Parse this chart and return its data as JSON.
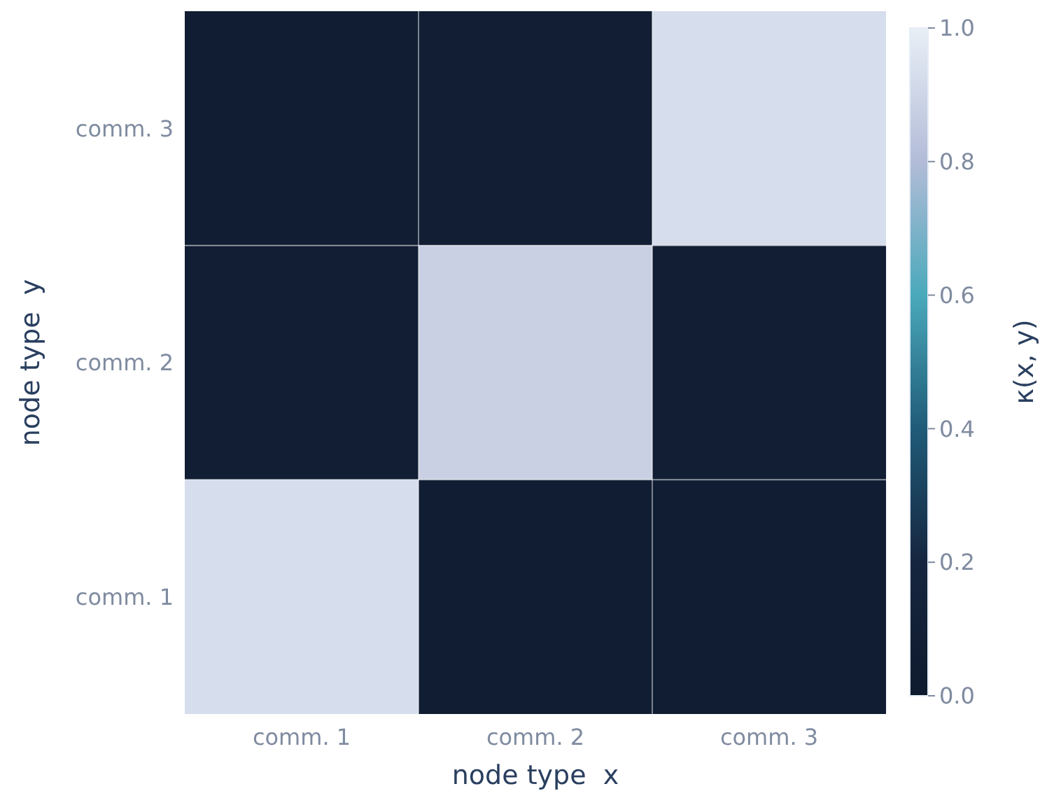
{
  "chart_data": {
    "type": "heatmap",
    "xlabel": "node type  x",
    "ylabel": "node type  y",
    "clabel": "κ(x, y)",
    "categories": [
      "comm. 1",
      "comm. 2",
      "comm. 3"
    ],
    "y_categories": [
      "comm. 3",
      "comm. 2",
      "comm. 1"
    ],
    "cells": [
      [
        0.05,
        0.08,
        0.93
      ],
      [
        0.08,
        0.88,
        0.07
      ],
      [
        0.93,
        0.06,
        0.05
      ]
    ],
    "clim": [
      0,
      1
    ],
    "cticks": [
      {
        "value": 0,
        "label": "0.0"
      },
      {
        "value": 0.2,
        "label": "0.2"
      },
      {
        "value": 0.4,
        "label": "0.4"
      },
      {
        "value": 0.6,
        "label": "0.6"
      },
      {
        "value": 0.8,
        "label": "0.8"
      },
      {
        "value": 1,
        "label": "1.0"
      }
    ],
    "grid": true
  }
}
